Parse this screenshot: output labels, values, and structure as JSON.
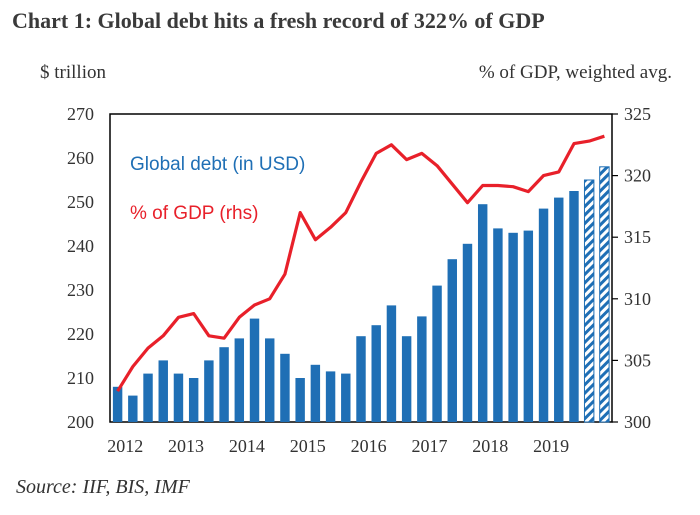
{
  "header": {
    "title": "Chart 1: Global debt hits a fresh record of 322% of GDP",
    "left_unit": "$ trillion",
    "right_unit": "% of GDP, weighted avg."
  },
  "footer": {
    "source": "Source: IIF, BIS, IMF"
  },
  "colors": {
    "bar": "#1f6fb5",
    "line": "#e8202a",
    "axis": "#000000",
    "hatch": "#1f6fb5"
  },
  "chart_data": {
    "type": "bar+line",
    "title": "Chart 1: Global debt hits a fresh record of 322% of GDP",
    "ylabel_left": "$ trillion",
    "ylabel_right": "% of GDP, weighted avg.",
    "ylim_left": [
      200,
      270
    ],
    "ylim_right": [
      300,
      325
    ],
    "yticks_left": [
      "270",
      "260",
      "250",
      "240",
      "230",
      "220",
      "210",
      "200"
    ],
    "yticks_right": [
      "325",
      "320",
      "315",
      "310",
      "305",
      "300"
    ],
    "x_tick_labels": [
      "2012",
      "2013",
      "2014",
      "2015",
      "2016",
      "2017",
      "2018",
      "2019"
    ],
    "grid": false,
    "series": [
      {
        "name": "Global debt (in USD)",
        "axis": "left",
        "style": "bar",
        "values": [
          208,
          206,
          211,
          214,
          211,
          210,
          214,
          217,
          219,
          223.5,
          219,
          215.5,
          210,
          213,
          211.5,
          211,
          219.5,
          222,
          226.5,
          219.5,
          224,
          231,
          237,
          240.5,
          249.5,
          244,
          243,
          243.5,
          248.5,
          251,
          252.5,
          255,
          258
        ],
        "hatched_from_index": 31
      },
      {
        "name": "% of GDP (rhs)",
        "axis": "right",
        "style": "line",
        "values": [
          302.5,
          304.5,
          306,
          307,
          308.5,
          308.8,
          307,
          306.8,
          308.5,
          309.5,
          310,
          312,
          317,
          314.8,
          315.8,
          317,
          319.5,
          321.8,
          322.5,
          321.3,
          321.8,
          320.8,
          319.3,
          317.8,
          319.2,
          319.2,
          319.1,
          318.7,
          320,
          320.3,
          322.6,
          322.8,
          323.2
        ]
      }
    ]
  }
}
